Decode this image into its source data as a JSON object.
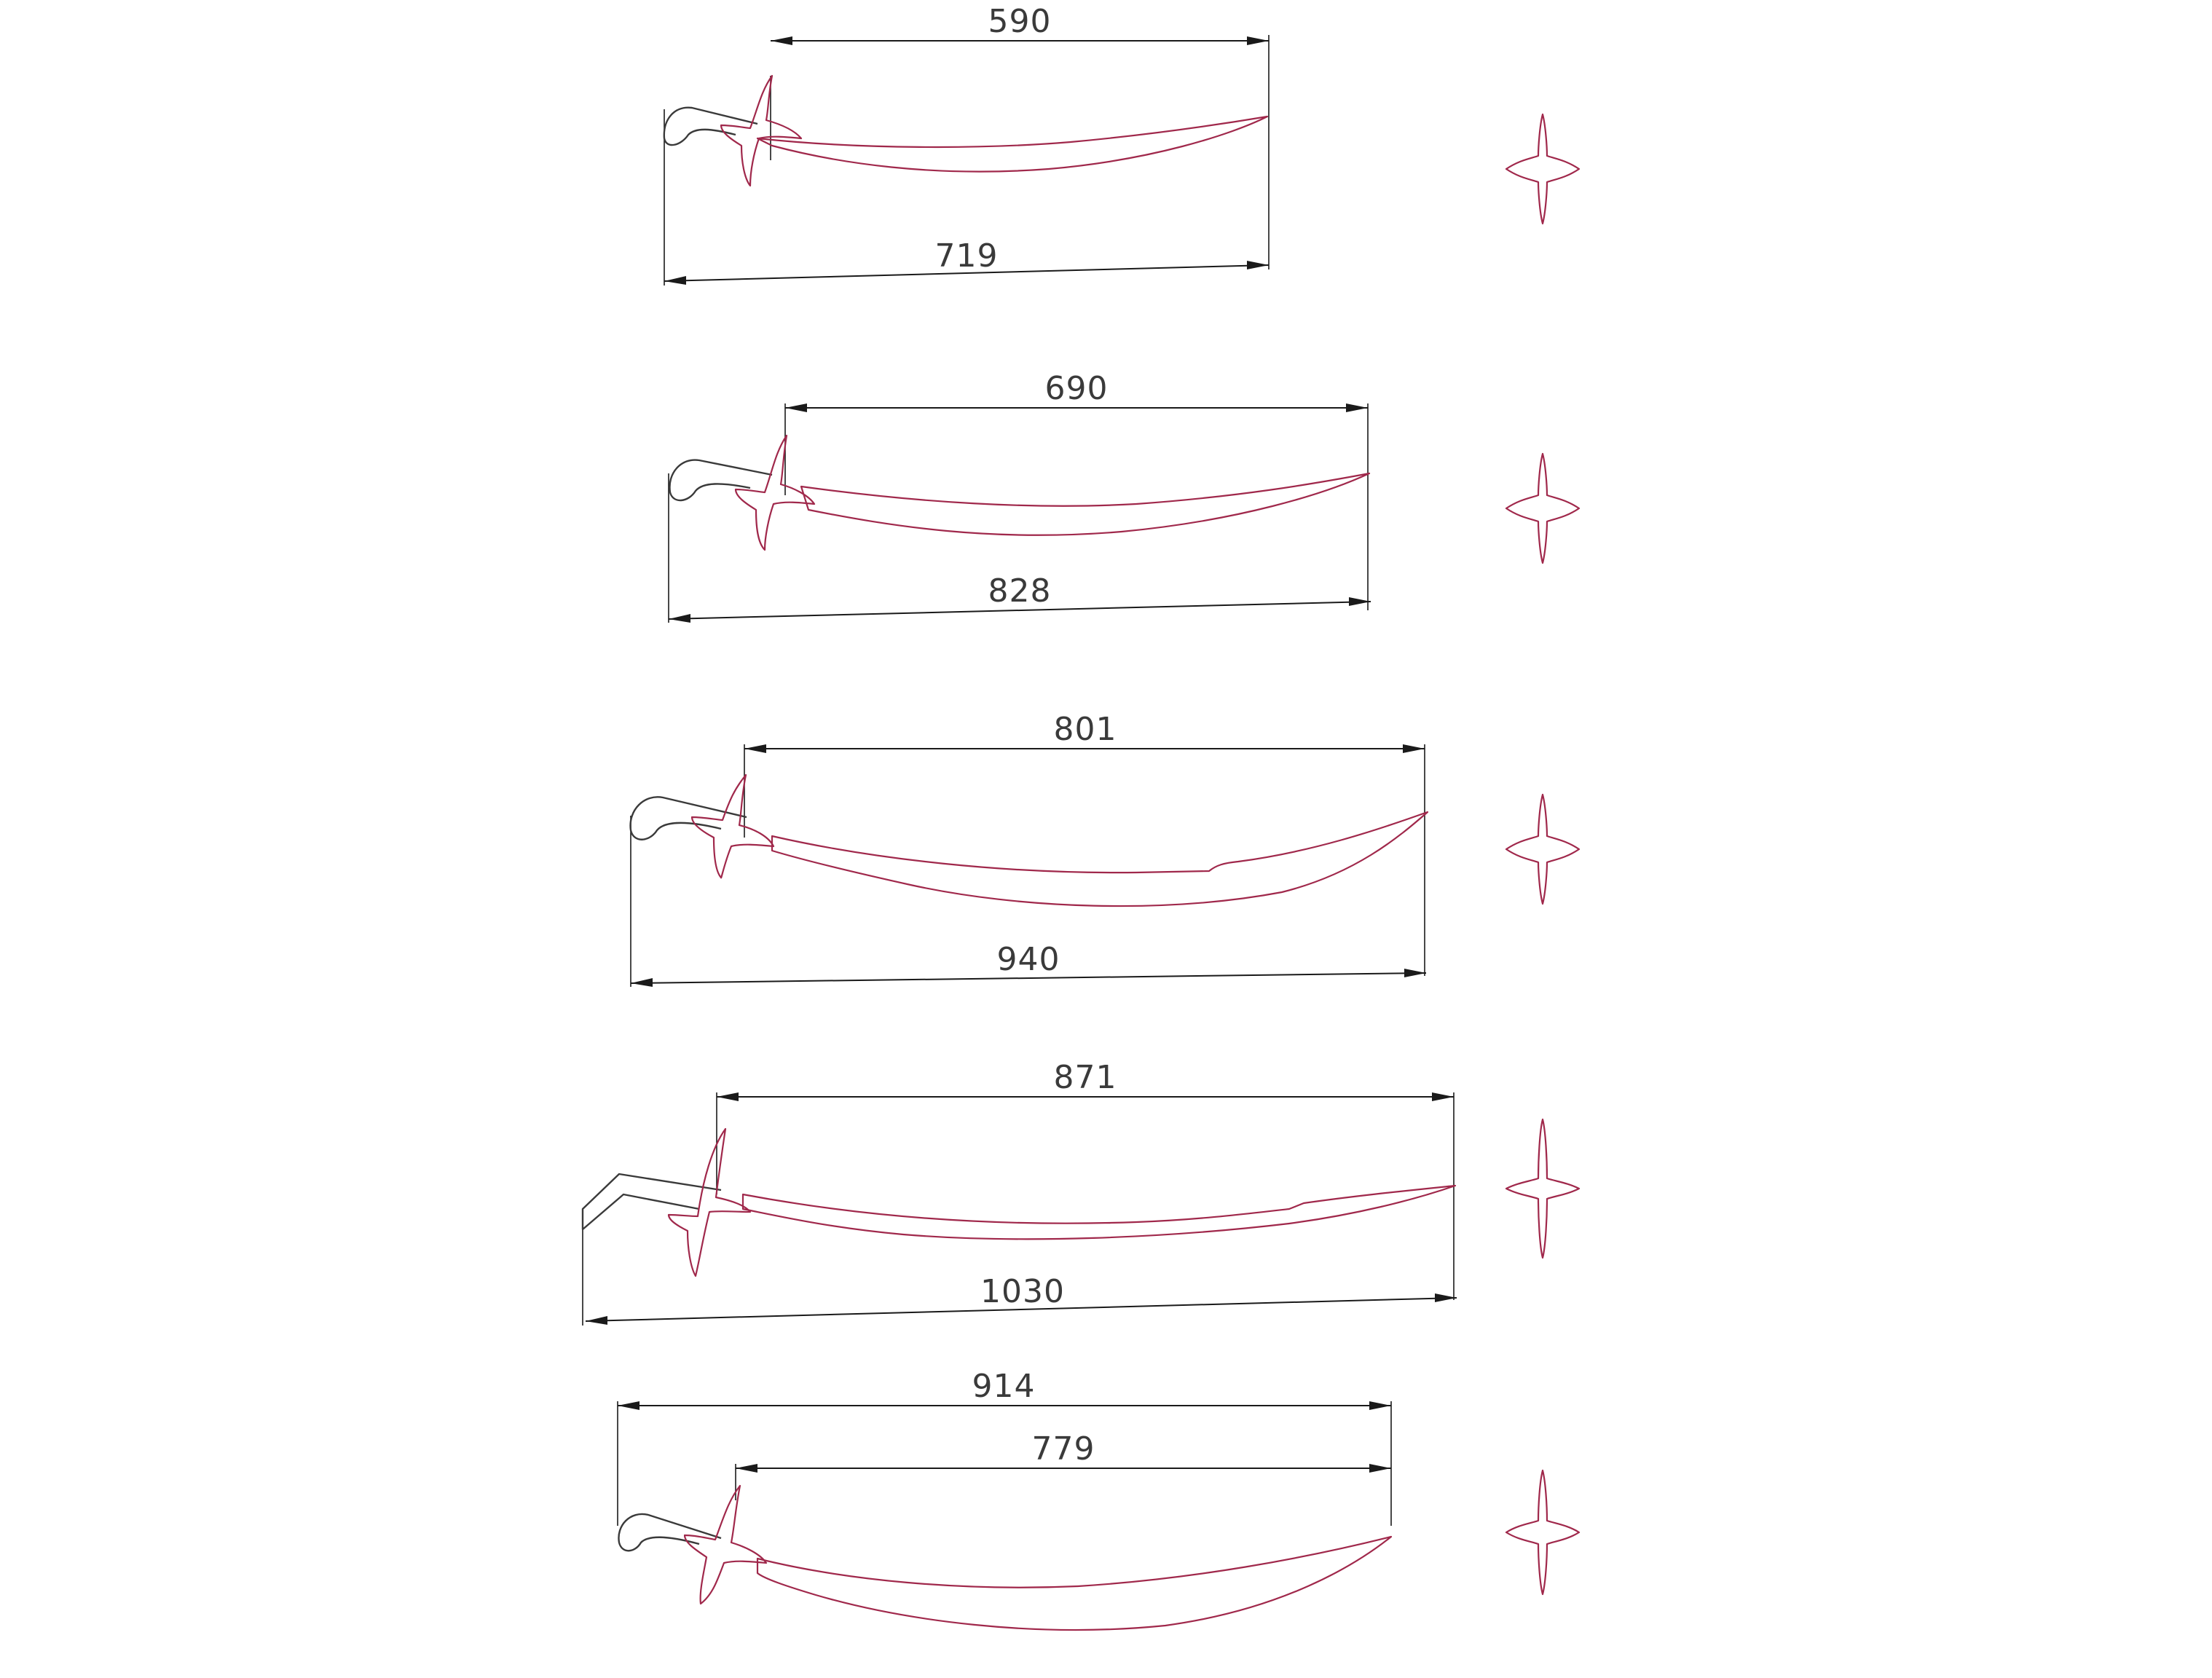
{
  "drawing": {
    "colors": {
      "outline": "#a0284b",
      "dimension": "#1a1a1a",
      "text": "#3a3a3a"
    },
    "swords": [
      {
        "id": "sword-1",
        "blade_length_label": "590",
        "total_length_label": "719",
        "guard_icon": "cross-guard-icon"
      },
      {
        "id": "sword-2",
        "blade_length_label": "690",
        "total_length_label": "828",
        "guard_icon": "cross-guard-icon"
      },
      {
        "id": "sword-3",
        "blade_length_label": "801",
        "total_length_label": "940",
        "guard_icon": "cross-guard-icon"
      },
      {
        "id": "sword-4",
        "blade_length_label": "871",
        "total_length_label": "1030",
        "guard_icon": "cross-guard-icon"
      },
      {
        "id": "sword-5",
        "blade_length_label": "779",
        "total_length_label": "914",
        "guard_icon": "cross-guard-icon"
      }
    ]
  }
}
